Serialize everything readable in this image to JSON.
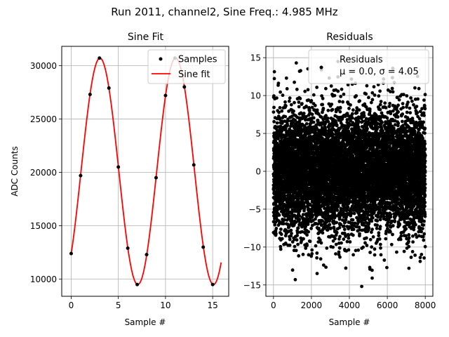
{
  "figure_title": "Run 2011, channel2, Sine Freq.: 4.985 MHz",
  "chart_data": [
    {
      "type": "scatter",
      "title": "Sine Fit",
      "xlabel": "Sample #",
      "ylabel": "ADC Counts",
      "xlim": [
        -1,
        16.7
      ],
      "ylim": [
        8400,
        31800
      ],
      "xticks": [
        0,
        5,
        10,
        15
      ],
      "yticks": [
        10000,
        15000,
        20000,
        25000,
        30000
      ],
      "grid": true,
      "legend": "top-right",
      "series": [
        {
          "name": "Samples",
          "kind": "scatter",
          "color": "#000000",
          "x": [
            0,
            1,
            2,
            3,
            4,
            5,
            6,
            7,
            8,
            9,
            10,
            11,
            12,
            13,
            14,
            15
          ],
          "y": [
            12400,
            19700,
            27300,
            30700,
            27900,
            20500,
            12900,
            9500,
            12300,
            19500,
            27200,
            30700,
            28000,
            20700,
            13000,
            9500
          ]
        },
        {
          "name": "Sine fit",
          "kind": "line",
          "color": "#ff0000",
          "model": {
            "offset": 20100,
            "amplitude": 10600,
            "period": 8.026,
            "phase_peak_x": 3.05,
            "x_start": 0,
            "x_end": 15.9
          }
        }
      ]
    },
    {
      "type": "scatter",
      "title": "Residuals",
      "xlabel": "Sample #",
      "ylabel": "",
      "xlim": [
        -400,
        8400
      ],
      "ylim": [
        -16.5,
        16.5
      ],
      "xticks": [
        0,
        2000,
        4000,
        6000,
        8000
      ],
      "yticks": [
        -15,
        -10,
        -5,
        0,
        5,
        10,
        15
      ],
      "grid": true,
      "legend": "top-right",
      "series": [
        {
          "name": "Residuals",
          "legend_line2": "μ = 0.0, σ = 4.05",
          "color": "#000000",
          "n_points": 8000,
          "mean": 0.0,
          "std": 4.05,
          "notable_points": [
            [
              1150,
              -14.3
            ],
            [
              4650,
              -15.2
            ],
            [
              5200,
              -14.1
            ],
            [
              1200,
              14.3
            ],
            [
              3400,
              14.5
            ],
            [
              2300,
              -13.5
            ]
          ]
        }
      ]
    }
  ]
}
